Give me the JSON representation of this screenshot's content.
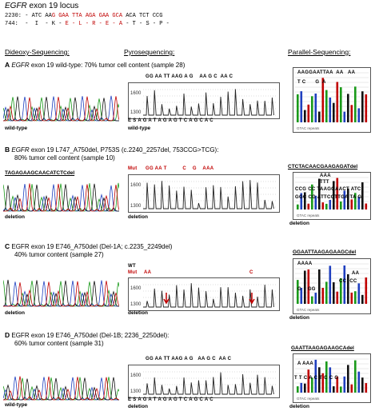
{
  "locus": {
    "gene": "EGFR",
    "rest": " exon 19 locus"
  },
  "seq_line1": {
    "prefix": "2230: - ATC AA",
    "red": "G GAA TTA AGA GAA GCA",
    "suffix": " ACA TCT CCG"
  },
  "seq_line2": {
    "prefix": "744:  -  I  - K - ",
    "red": "E - L - R - E - A",
    "suffix": " - T - S - P -"
  },
  "headers": {
    "dideoxy": "Dideoxy-Sequencing:",
    "pyro": "Pyrosequencing:",
    "parallel": "Parallel-Sequencing:"
  },
  "sections": [
    {
      "letter": "A",
      "line1_italic": "EGFR",
      "line1": " exon 19 wild-type: 70% tumor cell content (sample 28)",
      "line2": "",
      "dideoxy_label": "wild-type",
      "pyro_label": "wild-type",
      "parallel_label": "",
      "pyro_top": "GG AA TT AAG A G    AA G C  AA C",
      "pyro_bottom": "E S A G A T A G A G T C A G C A C",
      "par_top": "AAGGAATTAA  AA   AA",
      "par_mid": "T C      G  A",
      "dideoxy_seq": "",
      "parallel_seq": ""
    },
    {
      "letter": "B",
      "line1_italic": "EGFR",
      "line1": " exon 19 L747_A750del, P753S (c.2240_2257del, 753CCG>TCG):",
      "line2": "80% tumor cell  content (sample 10)",
      "dideoxy_label": "deletion",
      "pyro_label": "deletion",
      "parallel_label": "deletion",
      "dideoxy_seq": "TAGAGAAGCAACATCTCdel",
      "pyro_mut": "Mut",
      "pyro_top": "GG AA T          C    G    AAA",
      "parallel_seq": "CTCTACAACGAAGAGATdel",
      "par_top": "AAA",
      "par_mid": "TTT",
      "par_l1": "CCG CC TAAGGAACT ATC",
      "par_l2": "GGC CG ATTCCTTGA TA G"
    },
    {
      "letter": "C",
      "line1": "EGFR exon 19 E746_A750del (Del-1A; c.2235_2249del)",
      "line2": "40% tumor content (sample 27)",
      "dideoxy_label": "deletion",
      "pyro_label": "deletion",
      "parallel_label": "deletion",
      "pyro_wt": "WT",
      "pyro_mut": "Mut",
      "pyro_aa": "AA",
      "pyro_c": "C",
      "parallel_seq": "GGAATTAAGAGAAGCdel",
      "par_top": "AAAA",
      "par_mid": "AA",
      "par_l1": "CC  CC",
      "par_l2": "G    GG"
    },
    {
      "letter": "D",
      "line1": "EGFR exon 19 E746_A750del (Del-1B; 2236_2250del):",
      "line2": "60% tumor content (sample 31)",
      "dideoxy_label": "wild-type",
      "pyro_label": "deletion",
      "parallel_label": "deletion",
      "pyro_top": "GG AA TT AAG A G   AA G C  AA C",
      "pyro_bottom": "E S A G A T A G A G T C A G C A C",
      "parallel_seq": "GAATTAAGAGAAGCAdel",
      "par_l1": "A AAA",
      "par_l2": "T T C A C T C C G"
    }
  ],
  "axis": {
    "t1600": "1600",
    "t1300": "1300"
  },
  "gtac": "GTAC repeats",
  "colors": {
    "red": "#c00000",
    "green": "#1a9a1a",
    "blue": "#1f3fbf",
    "black": "#111111"
  }
}
